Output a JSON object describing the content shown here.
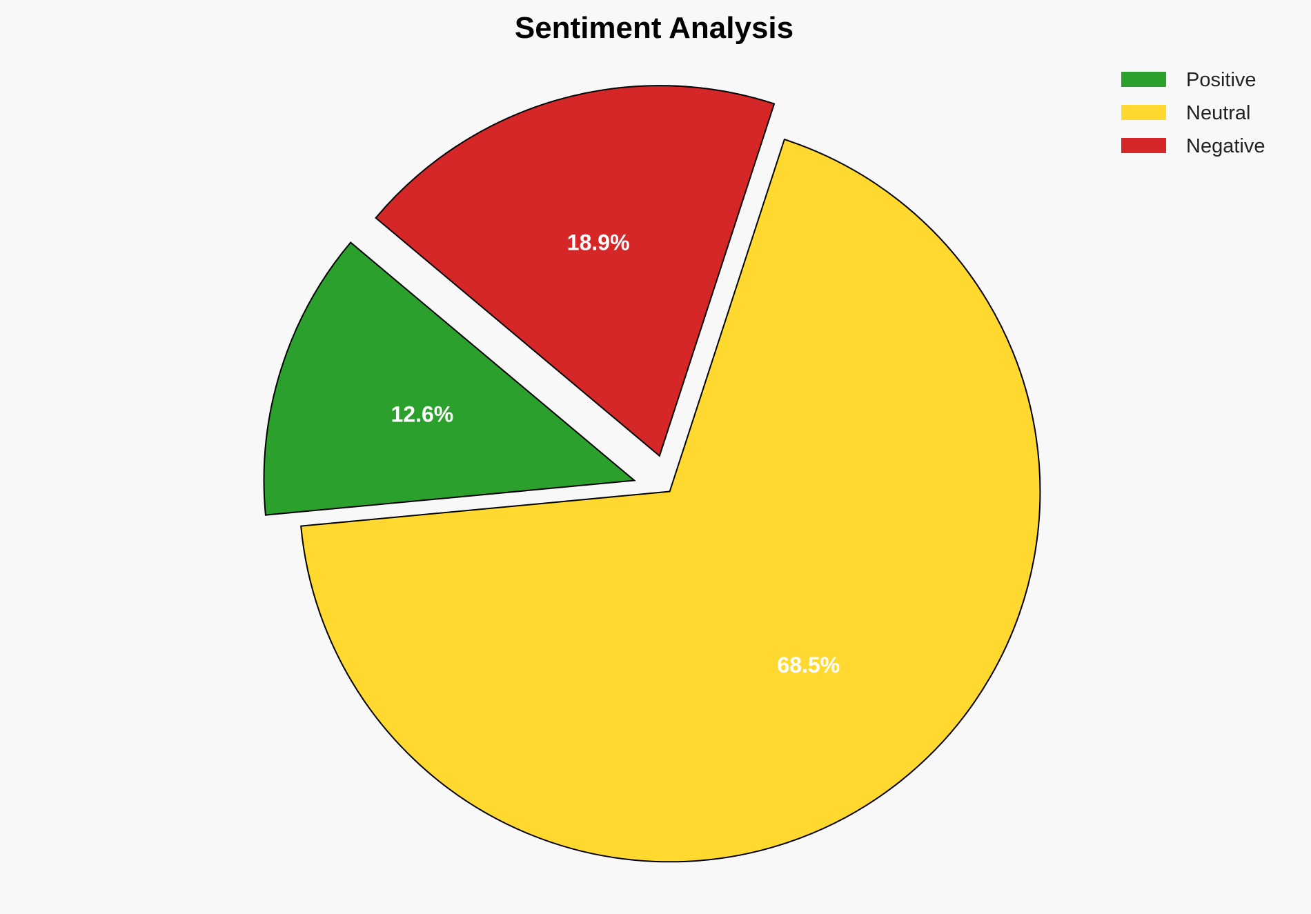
{
  "chart_data": {
    "type": "pie",
    "title": "Sentiment Analysis",
    "categories": [
      "Positive",
      "Neutral",
      "Negative"
    ],
    "values": [
      12.6,
      68.5,
      18.9
    ],
    "labels": [
      "12.6%",
      "68.5%",
      "18.9%"
    ],
    "colors": [
      "#2ca02c",
      "#ffd92f",
      "#d62728"
    ],
    "explode": [
      0.1,
      0,
      0.1
    ],
    "start_angle_deg": 140,
    "direction": "counterclockwise",
    "edge_color": "#000000",
    "label_color": "#ffffff",
    "legend_position": "top-right",
    "background": "#f8f8f8"
  }
}
